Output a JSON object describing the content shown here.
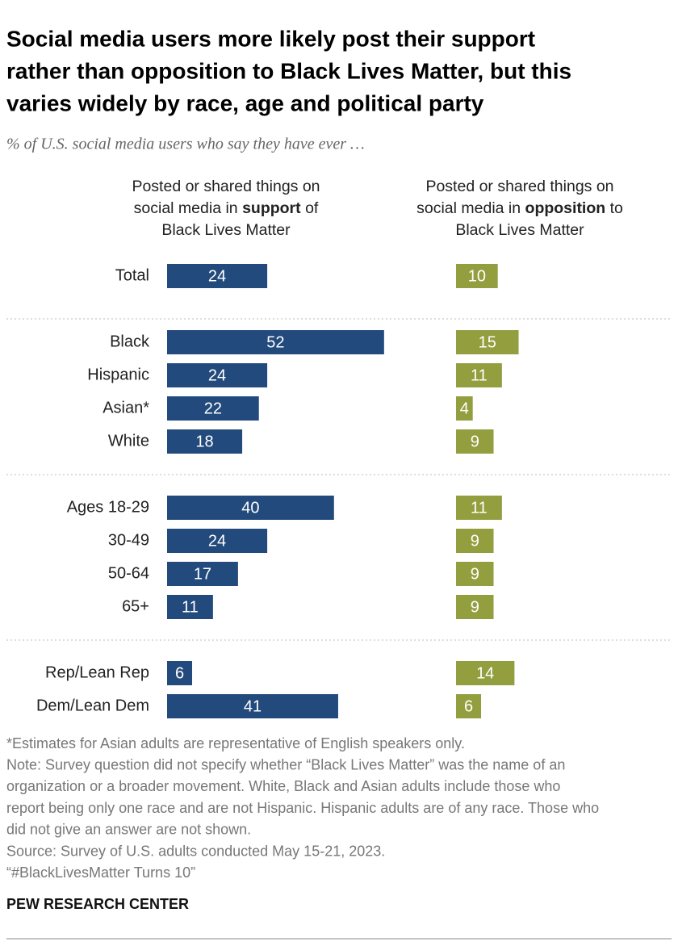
{
  "chart_data": {
    "type": "bar",
    "title": [
      "Social media users more likely post their support",
      "rather than opposition to Black Lives Matter, but this",
      "varies widely by race, age and political party"
    ],
    "subtitle": "% of U.S. social media users who say they have ever …",
    "categories": [
      "Total",
      "Black",
      "Hispanic",
      "Asian*",
      "White",
      "Ages 18-29",
      "30-49",
      "50-64",
      "65+",
      "Rep/Lean Rep",
      "Dem/Lean Dem"
    ],
    "series": [
      {
        "name_parts": [
          "Posted or shared things on",
          "social media in",
          "support",
          "of",
          "Black Lives Matter"
        ],
        "color": "#234a7c",
        "values": [
          24,
          52,
          24,
          22,
          18,
          40,
          24,
          17,
          11,
          6,
          41
        ]
      },
      {
        "name_parts": [
          "Posted or shared things on",
          "social media in",
          "opposition",
          "to",
          "Black Lives Matter"
        ],
        "color": "#939e3f",
        "values": [
          10,
          15,
          11,
          4,
          9,
          11,
          9,
          9,
          9,
          14,
          6
        ]
      }
    ],
    "notes": [
      "*Estimates for Asian adults are representative of English speakers only.",
      "Note: Survey question did not specify whether “Black Lives Matter” was the name of an",
      "organization or a broader movement. White, Black and Asian adults include those who",
      "report being only one race and are not Hispanic. Hispanic adults are of any race. Those who",
      "did not give an answer are not shown.",
      "Source: Survey of U.S. adults conducted May 15-21, 2023.",
      "“#BlackLivesMatter Turns 10”"
    ],
    "source": "PEW RESEARCH CENTER"
  }
}
